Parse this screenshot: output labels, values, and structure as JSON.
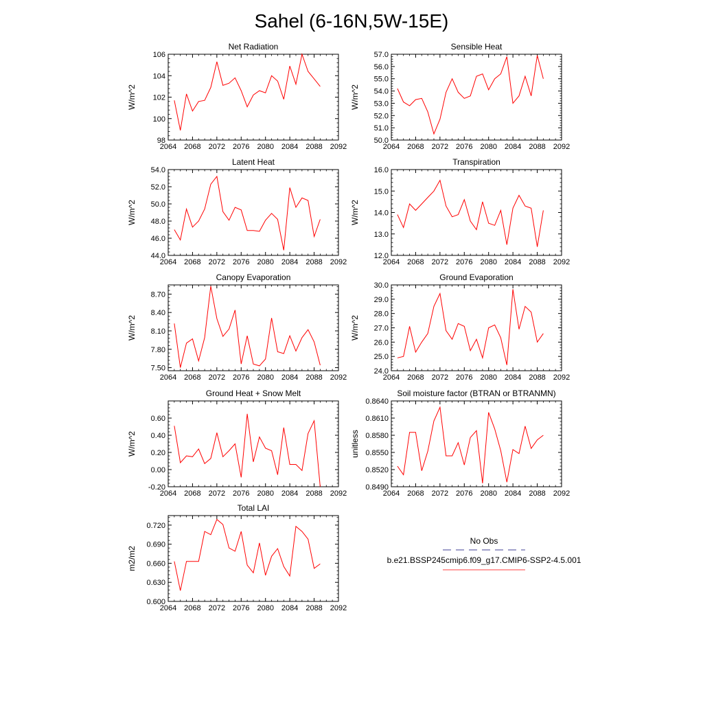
{
  "main_title": "Sahel (6-16N,5W-15E)",
  "legend": {
    "items": [
      {
        "label": "No Obs",
        "color": "#6666aa",
        "dash": "dashed"
      },
      {
        "label": "b.e21.BSSP245cmip6.f09_g17.CMIP6-SSP2-4.5.001",
        "color": "#ff6666",
        "dash": "solid"
      }
    ]
  },
  "chart_data": [
    {
      "type": "line",
      "title": "Net Radiation",
      "ylabel": "W/m^2",
      "xlim": [
        2064,
        2092
      ],
      "ylim": [
        98,
        106
      ],
      "xticks": [
        "2064",
        "2068",
        "2072",
        "2076",
        "2080",
        "2084",
        "2088",
        "2092"
      ],
      "yticks": [
        "98",
        "100",
        "102",
        "104",
        "106"
      ],
      "x": [
        2065,
        2066,
        2067,
        2068,
        2069,
        2070,
        2071,
        2072,
        2073,
        2074,
        2075,
        2076,
        2077,
        2078,
        2079,
        2080,
        2081,
        2082,
        2083,
        2084,
        2085,
        2086,
        2087,
        2088,
        2089
      ],
      "series": [
        {
          "values": [
            101.7,
            98.9,
            102.3,
            100.7,
            101.6,
            101.7,
            102.9,
            105.3,
            103.1,
            103.3,
            103.8,
            102.6,
            101.1,
            102.2,
            102.6,
            102.4,
            104.0,
            103.5,
            101.8,
            104.9,
            103.2,
            106.0,
            104.4,
            103.7,
            103.0
          ],
          "color": "#ff0000"
        }
      ]
    },
    {
      "type": "line",
      "title": "Sensible Heat",
      "ylabel": "W/m^2",
      "xlim": [
        2064,
        2092
      ],
      "ylim": [
        50,
        57
      ],
      "xticks": [
        "2064",
        "2068",
        "2072",
        "2076",
        "2080",
        "2084",
        "2088",
        "2092"
      ],
      "yticks": [
        "50.0",
        "51.0",
        "52.0",
        "53.0",
        "54.0",
        "55.0",
        "56.0",
        "57.0"
      ],
      "x": [
        2065,
        2066,
        2067,
        2068,
        2069,
        2070,
        2071,
        2072,
        2073,
        2074,
        2075,
        2076,
        2077,
        2078,
        2079,
        2080,
        2081,
        2082,
        2083,
        2084,
        2085,
        2086,
        2087,
        2088,
        2089
      ],
      "series": [
        {
          "values": [
            54.2,
            53.1,
            52.8,
            53.3,
            53.4,
            52.3,
            50.5,
            51.7,
            53.9,
            55.0,
            53.9,
            53.4,
            53.6,
            55.2,
            55.4,
            54.1,
            55.0,
            55.4,
            56.8,
            53.0,
            53.6,
            55.2,
            53.6,
            56.9,
            55.0
          ],
          "color": "#ff0000"
        }
      ]
    },
    {
      "type": "line",
      "title": "Latent Heat",
      "ylabel": "W/m^2",
      "xlim": [
        2064,
        2092
      ],
      "ylim": [
        44,
        54
      ],
      "xticks": [
        "2064",
        "2068",
        "2072",
        "2076",
        "2080",
        "2084",
        "2088",
        "2092"
      ],
      "yticks": [
        "44.0",
        "46.0",
        "48.0",
        "50.0",
        "52.0",
        "54.0"
      ],
      "x": [
        2065,
        2066,
        2067,
        2068,
        2069,
        2070,
        2071,
        2072,
        2073,
        2074,
        2075,
        2076,
        2077,
        2078,
        2079,
        2080,
        2081,
        2082,
        2083,
        2084,
        2085,
        2086,
        2087,
        2088,
        2089
      ],
      "series": [
        {
          "values": [
            47.0,
            45.8,
            49.4,
            47.3,
            48.0,
            49.4,
            52.3,
            53.2,
            49.1,
            48.1,
            49.6,
            49.3,
            46.9,
            46.9,
            46.8,
            48.1,
            48.9,
            48.2,
            44.6,
            51.9,
            49.6,
            50.7,
            50.4,
            46.2,
            48.2
          ],
          "color": "#ff0000"
        }
      ]
    },
    {
      "type": "line",
      "title": "Transpiration",
      "ylabel": "W/m^2",
      "xlim": [
        2064,
        2092
      ],
      "ylim": [
        12,
        16
      ],
      "xticks": [
        "2064",
        "2068",
        "2072",
        "2076",
        "2080",
        "2084",
        "2088",
        "2092"
      ],
      "yticks": [
        "12.0",
        "13.0",
        "14.0",
        "15.0",
        "16.0"
      ],
      "x": [
        2065,
        2066,
        2067,
        2068,
        2069,
        2070,
        2071,
        2072,
        2073,
        2074,
        2075,
        2076,
        2077,
        2078,
        2079,
        2080,
        2081,
        2082,
        2083,
        2084,
        2085,
        2086,
        2087,
        2088,
        2089
      ],
      "series": [
        {
          "values": [
            13.9,
            13.3,
            14.4,
            14.1,
            14.4,
            14.7,
            15.0,
            15.5,
            14.3,
            13.8,
            13.9,
            14.6,
            13.6,
            13.2,
            14.5,
            13.5,
            13.4,
            14.1,
            12.5,
            14.2,
            14.8,
            14.3,
            14.2,
            12.4,
            14.1
          ],
          "color": "#ff0000"
        }
      ]
    },
    {
      "type": "line",
      "title": "Canopy Evaporation",
      "ylabel": "W/m^2",
      "xlim": [
        2064,
        2092
      ],
      "ylim": [
        7.45,
        8.85
      ],
      "xticks": [
        "2064",
        "2068",
        "2072",
        "2076",
        "2080",
        "2084",
        "2088",
        "2092"
      ],
      "yticks": [
        "7.50",
        "7.80",
        "8.10",
        "8.40",
        "8.70"
      ],
      "x": [
        2065,
        2066,
        2067,
        2068,
        2069,
        2070,
        2071,
        2072,
        2073,
        2074,
        2075,
        2076,
        2077,
        2078,
        2079,
        2080,
        2081,
        2082,
        2083,
        2084,
        2085,
        2086,
        2087,
        2088,
        2089
      ],
      "series": [
        {
          "values": [
            8.22,
            7.5,
            7.9,
            7.97,
            7.61,
            7.99,
            8.83,
            8.3,
            8.01,
            8.13,
            8.44,
            7.56,
            8.02,
            7.56,
            7.53,
            7.64,
            8.31,
            7.76,
            7.73,
            8.02,
            7.77,
            7.99,
            8.12,
            7.92,
            7.54
          ],
          "color": "#ff0000"
        }
      ]
    },
    {
      "type": "line",
      "title": "Ground Evaporation",
      "ylabel": "W/m^2",
      "xlim": [
        2064,
        2092
      ],
      "ylim": [
        24,
        30
      ],
      "xticks": [
        "2064",
        "2068",
        "2072",
        "2076",
        "2080",
        "2084",
        "2088",
        "2092"
      ],
      "yticks": [
        "24.0",
        "25.0",
        "26.0",
        "27.0",
        "28.0",
        "29.0",
        "30.0"
      ],
      "x": [
        2065,
        2066,
        2067,
        2068,
        2069,
        2070,
        2071,
        2072,
        2073,
        2074,
        2075,
        2076,
        2077,
        2078,
        2079,
        2080,
        2081,
        2082,
        2083,
        2084,
        2085,
        2086,
        2087,
        2088,
        2089
      ],
      "series": [
        {
          "values": [
            24.9,
            25.0,
            27.1,
            25.3,
            26.0,
            26.6,
            28.5,
            29.4,
            26.8,
            26.2,
            27.3,
            27.1,
            25.4,
            26.2,
            24.9,
            27.0,
            27.2,
            26.3,
            24.4,
            29.7,
            26.9,
            28.5,
            28.1,
            26.0,
            26.6
          ],
          "color": "#ff0000"
        }
      ]
    },
    {
      "type": "line",
      "title": "Ground Heat + Snow Melt",
      "ylabel": "W/m^2",
      "xlim": [
        2064,
        2092
      ],
      "ylim": [
        -0.2,
        0.8
      ],
      "xticks": [
        "2064",
        "2068",
        "2072",
        "2076",
        "2080",
        "2084",
        "2088",
        "2092"
      ],
      "yticks": [
        "-0.20",
        "0.00",
        "0.20",
        "0.40",
        "0.60"
      ],
      "x": [
        2065,
        2066,
        2067,
        2068,
        2069,
        2070,
        2071,
        2072,
        2073,
        2074,
        2075,
        2076,
        2077,
        2078,
        2079,
        2080,
        2081,
        2082,
        2083,
        2084,
        2085,
        2086,
        2087,
        2088,
        2089
      ],
      "series": [
        {
          "values": [
            0.51,
            0.08,
            0.16,
            0.15,
            0.24,
            0.07,
            0.13,
            0.43,
            0.15,
            0.22,
            0.3,
            -0.09,
            0.65,
            0.09,
            0.38,
            0.25,
            0.22,
            -0.06,
            0.49,
            0.06,
            0.06,
            -0.01,
            0.42,
            0.57,
            -0.2
          ],
          "color": "#ff0000"
        }
      ]
    },
    {
      "type": "line",
      "title": "Soil moisture factor (BTRAN or BTRANMN)",
      "ylabel": "unitless",
      "xlim": [
        2064,
        2092
      ],
      "ylim": [
        0.849,
        0.864
      ],
      "xticks": [
        "2064",
        "2068",
        "2072",
        "2076",
        "2080",
        "2084",
        "2088",
        "2092"
      ],
      "yticks": [
        "0.8490",
        "0.8520",
        "0.8550",
        "0.8580",
        "0.8610",
        "0.8640"
      ],
      "x": [
        2065,
        2066,
        2067,
        2068,
        2069,
        2070,
        2071,
        2072,
        2073,
        2074,
        2075,
        2076,
        2077,
        2078,
        2079,
        2080,
        2081,
        2082,
        2083,
        2084,
        2085,
        2086,
        2087,
        2088,
        2089
      ],
      "series": [
        {
          "values": [
            0.8526,
            0.8511,
            0.8585,
            0.8585,
            0.8518,
            0.8552,
            0.8605,
            0.8629,
            0.8544,
            0.8544,
            0.8567,
            0.8528,
            0.8576,
            0.8588,
            0.8496,
            0.862,
            0.8591,
            0.8553,
            0.8498,
            0.8555,
            0.8548,
            0.8596,
            0.8557,
            0.8572,
            0.858
          ],
          "color": "#ff0000"
        }
      ]
    },
    {
      "type": "line",
      "title": "Total LAI",
      "ylabel": "m2/m2",
      "xlim": [
        2064,
        2092
      ],
      "ylim": [
        0.6,
        0.735
      ],
      "xticks": [
        "2064",
        "2068",
        "2072",
        "2076",
        "2080",
        "2084",
        "2088",
        "2092"
      ],
      "yticks": [
        "0.600",
        "0.630",
        "0.660",
        "0.690",
        "0.720"
      ],
      "x": [
        2065,
        2066,
        2067,
        2068,
        2069,
        2070,
        2071,
        2072,
        2073,
        2074,
        2075,
        2076,
        2077,
        2078,
        2079,
        2080,
        2081,
        2082,
        2083,
        2084,
        2085,
        2086,
        2087,
        2088,
        2089
      ],
      "series": [
        {
          "values": [
            0.663,
            0.617,
            0.663,
            0.663,
            0.663,
            0.71,
            0.705,
            0.729,
            0.721,
            0.684,
            0.679,
            0.71,
            0.657,
            0.645,
            0.692,
            0.641,
            0.671,
            0.683,
            0.655,
            0.64,
            0.718,
            0.71,
            0.698,
            0.652,
            0.659
          ],
          "color": "#ff0000"
        }
      ]
    }
  ]
}
